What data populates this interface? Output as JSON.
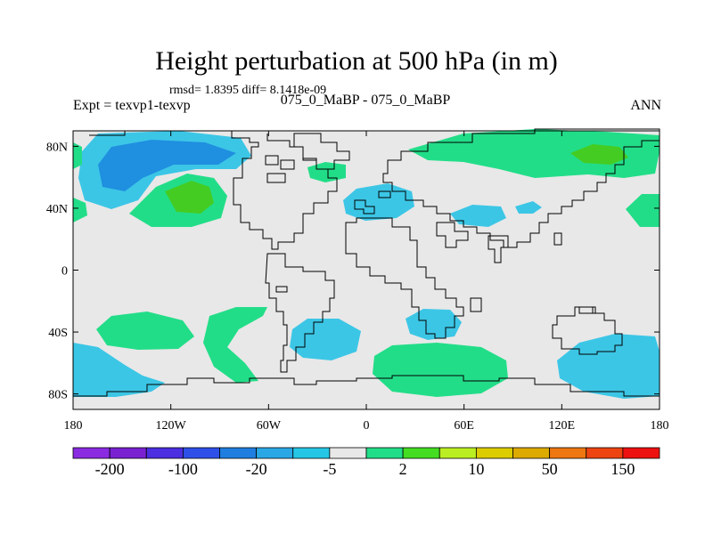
{
  "title": "Height perturbation at 500 hPa (in m)",
  "stats_line": "rmsd= 1.8395  diff= 8.1418e-09",
  "experiment_label": "Expt = texvp1-texvp",
  "case_label": "075_0_MaBP - 075_0_MaBP",
  "season_label": "ANN",
  "map": {
    "lon_ticks": [
      "180",
      "120W",
      "60W",
      "0",
      "60E",
      "120E",
      "180"
    ],
    "lat_ticks": [
      "80N",
      "40N",
      "0",
      "40S",
      "80S"
    ],
    "background_color": "#e8e8e8",
    "coastline_color": "#000000"
  },
  "colorbar": {
    "colors": [
      "#8a2be2",
      "#7a22d2",
      "#4b2fe0",
      "#2f50e8",
      "#1f7ee0",
      "#2aa8e6",
      "#26c6e6",
      "#e8e8e8",
      "#22dd88",
      "#44dd22",
      "#bbee22",
      "#ddcc00",
      "#ddaa00",
      "#ee7711",
      "#ee4411",
      "#ee1111"
    ],
    "labels": [
      "-200",
      "-100",
      "-20",
      "-5",
      "2",
      "10",
      "50",
      "150"
    ]
  },
  "field_colors": {
    "neg_light": "#3cc6e6",
    "neg_mid": "#1f8fe0",
    "pos_light": "#22dd88",
    "pos_mid": "#44cc22"
  }
}
